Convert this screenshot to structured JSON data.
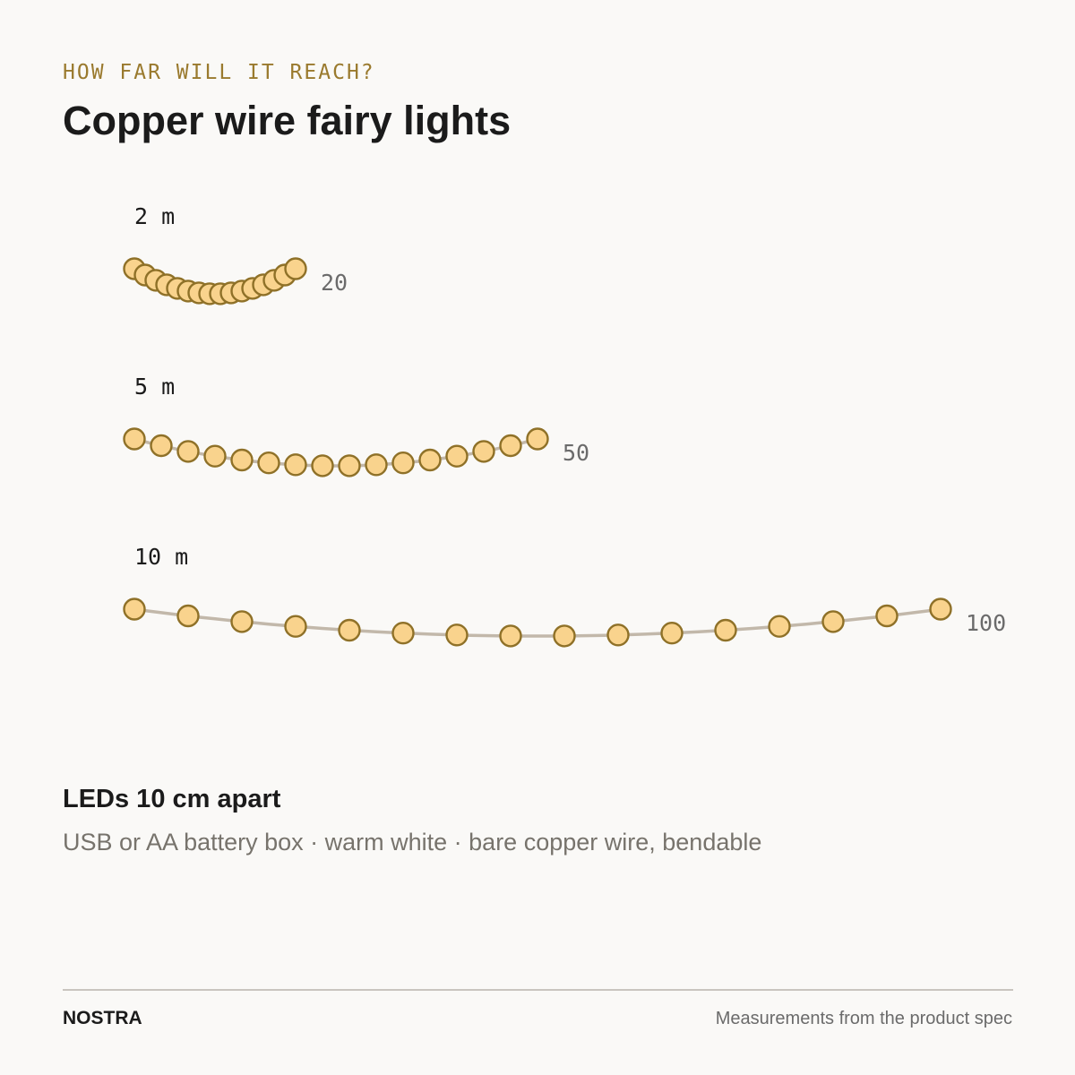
{
  "header": {
    "eyebrow": "HOW FAR WILL IT REACH?",
    "title": "Copper wire fairy lights"
  },
  "strands": [
    {
      "length_label": "2 m",
      "count_label": "20",
      "length_m": 2,
      "leds_shown": 16
    },
    {
      "length_label": "5 m",
      "count_label": "50",
      "length_m": 5,
      "leds_shown": 16
    },
    {
      "length_label": "10 m",
      "count_label": "100",
      "length_m": 10,
      "leds_shown": 16
    }
  ],
  "spacing_label": "LEDs 10 cm apart",
  "details": "USB or AA battery box · warm white · bare copper wire, bendable",
  "footer": {
    "brand": "NOSTRA",
    "source": "Measurements from the product spec"
  },
  "colors": {
    "accent": "#9a7a2e",
    "led_fill": "#f9d38d",
    "led_stroke": "#8f7128",
    "wire": "#c2b8aa",
    "text": "#1b1b1b",
    "muted": "#77736c"
  }
}
